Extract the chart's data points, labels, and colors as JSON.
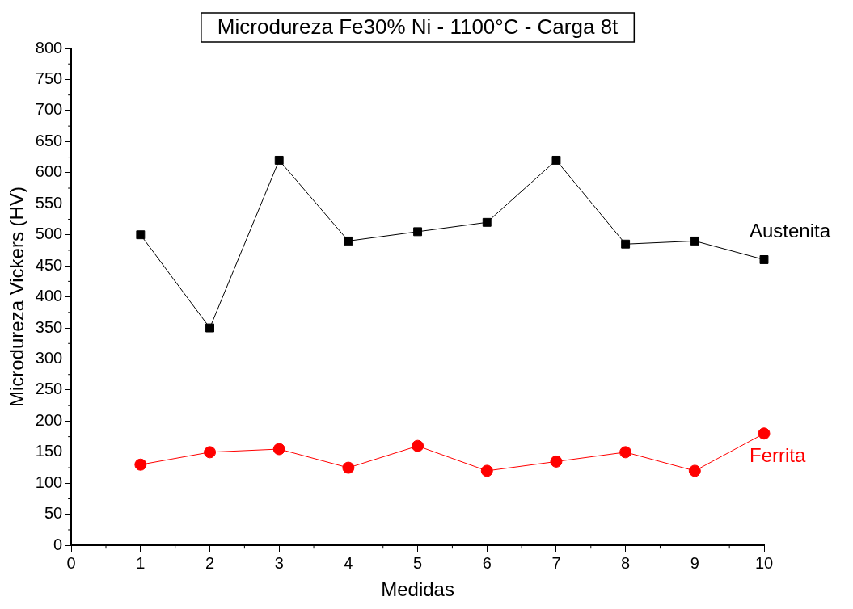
{
  "chart_data": {
    "type": "line",
    "title": "Microdureza Fe30% Ni - 1100°C - Carga 8t",
    "xlabel": "Medidas",
    "ylabel": "Microdureza Vickers (HV)",
    "x": [
      1,
      2,
      3,
      4,
      5,
      6,
      7,
      8,
      9,
      10
    ],
    "series": [
      {
        "name": "Austenita",
        "color": "#000000",
        "marker": "square",
        "values": [
          500,
          350,
          620,
          490,
          505,
          520,
          620,
          485,
          490,
          460
        ]
      },
      {
        "name": "Ferrita",
        "color": "#ff0000",
        "marker": "circle",
        "values": [
          130,
          150,
          155,
          125,
          160,
          120,
          135,
          150,
          120,
          180
        ]
      }
    ],
    "xlim": [
      0,
      10
    ],
    "xticks": [
      0,
      1,
      2,
      3,
      4,
      5,
      6,
      7,
      8,
      9,
      10
    ],
    "ylim": [
      0,
      800
    ],
    "yticks": [
      0,
      50,
      100,
      150,
      200,
      250,
      300,
      350,
      400,
      450,
      500,
      550,
      600,
      650,
      700,
      750,
      800
    ],
    "grid": false,
    "legend": false,
    "line_style": "solid"
  }
}
